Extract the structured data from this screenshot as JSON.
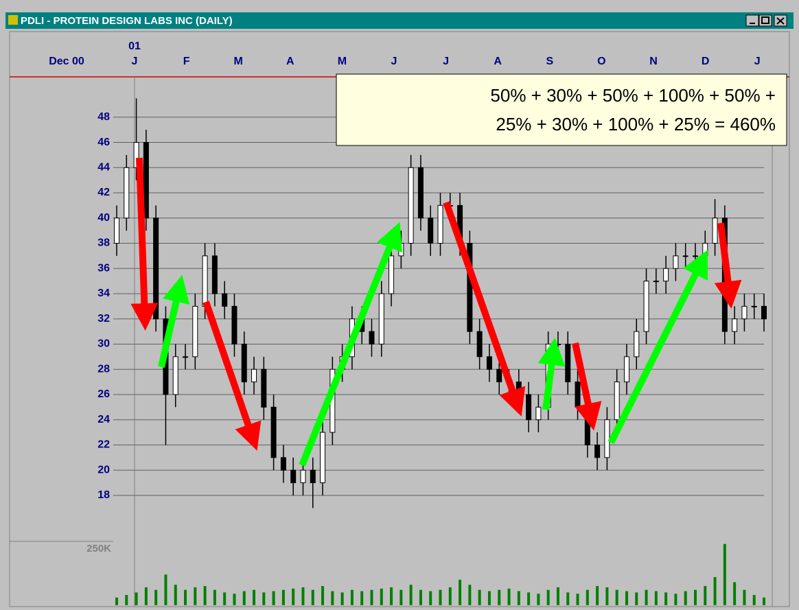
{
  "window": {
    "title": "PDLI - PROTEIN DESIGN LABS INC (DAILY)"
  },
  "chart_data": {
    "type": "candlestick",
    "annotation": [
      "50% + 30% + 50% + 100% + 50% +",
      "25% + 30% + 100% + 25%  = 460%"
    ],
    "months": [
      "Dec 00",
      "J",
      "F",
      "M",
      "A",
      "M",
      "J",
      "J",
      "A",
      "S",
      "O",
      "N",
      "D",
      "J"
    ],
    "year": "01",
    "ylim": [
      14.35,
      51.2
    ],
    "yticks": [
      18,
      20,
      22,
      24,
      26,
      28,
      30,
      32,
      34,
      36,
      38,
      40,
      42,
      44,
      46,
      48
    ],
    "grid": true,
    "color": "#000000",
    "open": [
      38,
      40,
      44,
      46,
      40,
      32,
      26,
      29,
      29,
      33,
      37,
      34,
      33,
      30,
      27,
      28,
      25,
      21,
      20,
      19,
      20,
      19,
      23,
      28,
      29,
      32,
      31,
      30,
      34,
      37,
      38,
      44,
      40,
      38,
      41,
      41,
      38,
      31,
      29,
      28,
      27,
      27,
      26,
      24,
      25,
      30,
      30,
      27,
      25,
      22,
      21,
      24,
      27,
      29,
      31,
      35,
      35,
      36,
      37,
      37,
      37,
      38,
      40,
      31,
      32,
      33,
      33
    ],
    "high": [
      41,
      45,
      49.5,
      47,
      41,
      33,
      30,
      30,
      34,
      38,
      38,
      35,
      34,
      31,
      29,
      29,
      26,
      22,
      21,
      21,
      21,
      24,
      29,
      30,
      33,
      33,
      32,
      35,
      38,
      39,
      45,
      45,
      41,
      42,
      42,
      42,
      39,
      32,
      30,
      29,
      28,
      28,
      27,
      26,
      31,
      31,
      31,
      28,
      26,
      23,
      25,
      28,
      30,
      32,
      36,
      36,
      37,
      38,
      38,
      38,
      39,
      41.5,
      41,
      33,
      34,
      34,
      34
    ],
    "low": [
      37,
      39,
      43,
      39,
      31,
      22,
      25,
      28,
      28,
      32,
      33,
      32,
      29,
      26,
      26,
      24,
      20,
      19,
      18,
      18,
      17,
      18,
      22,
      27,
      28,
      30,
      29,
      29,
      33,
      36,
      37,
      39,
      37,
      37,
      40,
      37,
      30,
      28,
      27,
      26,
      26,
      25,
      23,
      23,
      24,
      29,
      26,
      24,
      21,
      20,
      20,
      23,
      26,
      28,
      30,
      34,
      34,
      35,
      36,
      36,
      36,
      37,
      30,
      30,
      31,
      32,
      31
    ],
    "close": [
      40,
      44,
      46,
      40,
      32,
      26,
      29,
      29,
      33,
      37,
      34,
      33,
      30,
      27,
      28,
      25,
      21,
      20,
      19,
      20,
      19,
      23,
      28,
      29,
      32,
      31,
      30,
      34,
      37,
      38,
      44,
      40,
      38,
      41,
      41,
      38,
      31,
      29,
      28,
      27,
      27,
      26,
      24,
      25,
      30,
      30,
      27,
      25,
      22,
      21,
      24,
      27,
      29,
      31,
      35,
      35,
      36,
      37,
      37,
      37,
      38,
      40,
      31,
      32,
      33,
      33,
      32
    ],
    "volume": {
      "color": "#008000",
      "ylim": [
        0,
        250000
      ],
      "yticks": [
        {
          "value": 250000,
          "label": "250K"
        }
      ],
      "values": [
        30000,
        40000,
        50000,
        70000,
        60000,
        120000,
        80000,
        60000,
        70000,
        75000,
        60000,
        50000,
        45000,
        55000,
        60000,
        50000,
        55000,
        60000,
        65000,
        70000,
        60000,
        75000,
        55000,
        50000,
        60000,
        55000,
        60000,
        65000,
        70000,
        60000,
        80000,
        60000,
        55000,
        60000,
        70000,
        100000,
        80000,
        60000,
        55000,
        60000,
        65000,
        55000,
        50000,
        45000,
        60000,
        70000,
        50000,
        45000,
        60000,
        75000,
        70000,
        60000,
        55000,
        50000,
        60000,
        55000,
        50000,
        45000,
        55000,
        60000,
        75000,
        110000,
        240000,
        90000,
        60000,
        40000,
        30000
      ]
    }
  }
}
